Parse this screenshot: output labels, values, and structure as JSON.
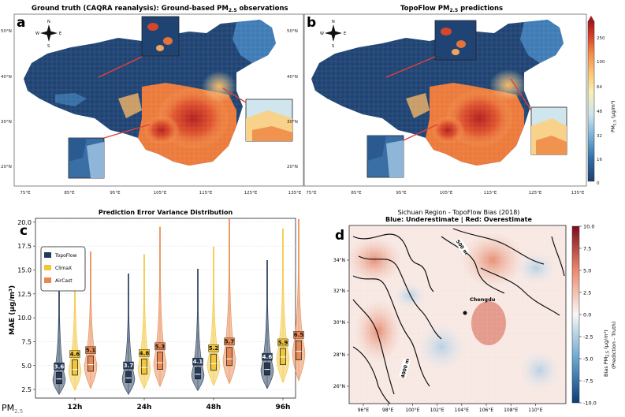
{
  "colors": {
    "topoflow": "#243a58",
    "climax": "#f2c637",
    "aircast": "#e8874f",
    "pm_scale": [
      "#1d3f6e",
      "#2f6fa8",
      "#79afd6",
      "#cfe6ee",
      "#f7efb4",
      "#fcc374",
      "#f38c4a",
      "#d9452a",
      "#a2161d"
    ]
  },
  "panel_a": {
    "letter": "a",
    "title": "Ground truth (CAQRA reanalysis): Ground-based PM",
    "title_sub": "2.5",
    "title_end": " observations",
    "lat_labels": [
      "50°N",
      "40°N",
      "30°N",
      "20°N"
    ],
    "lon_labels": [
      "75°E",
      "85°E",
      "95°E",
      "105°E",
      "115°E",
      "125°E",
      "135°E"
    ],
    "compass": [
      "N",
      "S",
      "E",
      "W"
    ]
  },
  "panel_b": {
    "letter": "b",
    "title": "TopoFlow PM",
    "title_sub": "2.5",
    "title_end": " predictions",
    "lat_labels": [
      "50°N",
      "40°N",
      "30°N",
      "20°N"
    ],
    "lon_labels": [
      "75°E",
      "85°E",
      "95°E",
      "105°E",
      "115°E",
      "125°E",
      "135°E"
    ],
    "compass": [
      "N",
      "S",
      "E",
      "W"
    ],
    "colorbar": {
      "ticks": [
        "250",
        "100",
        "64",
        "48",
        "32",
        "16",
        "0"
      ],
      "label": "PM",
      "label_sub": "2.5",
      "label_end": " (μg/m³)"
    }
  },
  "chart_data": [
    {
      "type": "violin",
      "panel": "c",
      "title": "Prediction Error Variance Distribution",
      "ylabel": "MAE (μg/m³)",
      "xlabel": "PM",
      "xlabel_sub": "2.5",
      "categories": [
        "12h",
        "24h",
        "48h",
        "96h"
      ],
      "ylim": [
        1.6,
        20.4
      ],
      "yticks": [
        "20.0",
        "17.5",
        "15.0",
        "12.5",
        "10.0",
        "7.5",
        "5.0",
        "2.5"
      ],
      "legend_position": "top-left",
      "series": [
        {
          "name": "TopoFlow",
          "medians": [
            3.6,
            3.7,
            4.1,
            4.6
          ],
          "q1": [
            3.1,
            3.2,
            3.6,
            4.0
          ],
          "q3": [
            4.3,
            4.4,
            4.8,
            5.3
          ],
          "max": [
            14.6,
            14.6,
            15.1,
            16.0
          ],
          "min": [
            2.0,
            2.0,
            2.4,
            2.6
          ]
        },
        {
          "name": "ClimaX",
          "medians": [
            4.6,
            4.8,
            5.2,
            5.9
          ],
          "q1": [
            4.0,
            4.1,
            4.5,
            5.1
          ],
          "q3": [
            5.6,
            5.7,
            6.2,
            6.8
          ],
          "max": [
            16.1,
            16.6,
            17.4,
            19.3
          ],
          "min": [
            2.4,
            2.6,
            2.9,
            3.2
          ]
        },
        {
          "name": "AirCast",
          "medians": [
            5.1,
            5.3,
            5.7,
            6.5
          ],
          "q1": [
            4.4,
            4.6,
            5.0,
            5.6
          ],
          "q3": [
            6.0,
            6.4,
            6.9,
            7.6
          ],
          "max": [
            16.9,
            19.5,
            20.3,
            20.3
          ],
          "min": [
            2.6,
            2.8,
            3.1,
            3.4
          ]
        }
      ]
    },
    {
      "type": "heatmap",
      "panel": "d",
      "title_line1": "Sichuan Region - TopoFlow Bias (2018)",
      "title_line2": "Blue: Underestimate | Red: Overestimate",
      "xticks": [
        "96°E",
        "98°E",
        "100°E",
        "102°E",
        "104°E",
        "106°E",
        "108°E",
        "110°E"
      ],
      "yticks": [
        "34°N",
        "32°N",
        "30°N",
        "28°N",
        "26°N"
      ],
      "colorbar_ticks": [
        "10.0",
        "7.5",
        "5.0",
        "2.5",
        "0.0",
        "-2.5",
        "-5.0",
        "-7.5",
        "-10.0"
      ],
      "colorbar_range": [
        -10,
        10
      ],
      "colorbar_label": "Bias PM",
      "colorbar_label_sub": "2.5",
      "colorbar_label_end": " (μg/m³)",
      "colorbar_label2": "(Prediction - Truth)",
      "annotations": [
        "Chengdu",
        "500 m",
        "4000 m"
      ]
    }
  ],
  "panel_c": {
    "letter": "c"
  },
  "panel_d": {
    "letter": "d"
  }
}
